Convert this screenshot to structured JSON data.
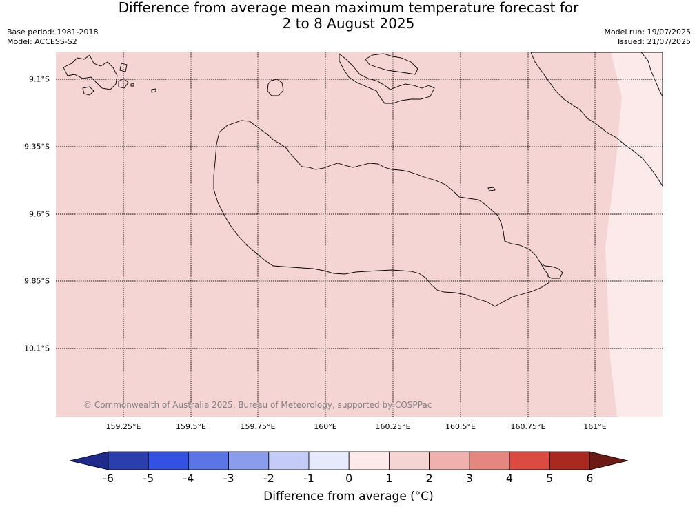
{
  "header": {
    "title_line1": "Difference from average mean maximum temperature forecast for",
    "title_line2": "2 to 8 August 2025",
    "base_period": "Base period: 1981-2018",
    "model": "Model: ACCESS-S2",
    "model_run": "Model run: 19/07/2025",
    "issued": "Issued: 21/07/2025"
  },
  "map": {
    "lat_labels": [
      "9.1°S",
      "9.35°S",
      "9.6°S",
      "9.85°S",
      "10.1°S"
    ],
    "lon_labels": [
      "159.25°E",
      "159.5°E",
      "159.75°E",
      "160°E",
      "160.25°E",
      "160.5°E",
      "160.75°E",
      "161°E"
    ],
    "copyright": "© Commonwealth of Australia 2025, Bureau of Meteorology, supported by COSPPac",
    "fill_main": "#f5d5d3",
    "fill_east": "#fbeae9"
  },
  "colorbar": {
    "ticks": [
      "-6",
      "-5",
      "-4",
      "-3",
      "-2",
      "-1",
      "0",
      "1",
      "2",
      "3",
      "4",
      "5",
      "6"
    ],
    "colors": [
      "#1e2a8c",
      "#2a3eae",
      "#3352e0",
      "#5b74e6",
      "#8a9cec",
      "#c3cbf6",
      "#e7eafc",
      "#fbeae9",
      "#f5d5d3",
      "#eeb1ad",
      "#e6877f",
      "#db4b41",
      "#a9281f",
      "#6e1a14"
    ],
    "label": "Difference from average (°C)"
  }
}
